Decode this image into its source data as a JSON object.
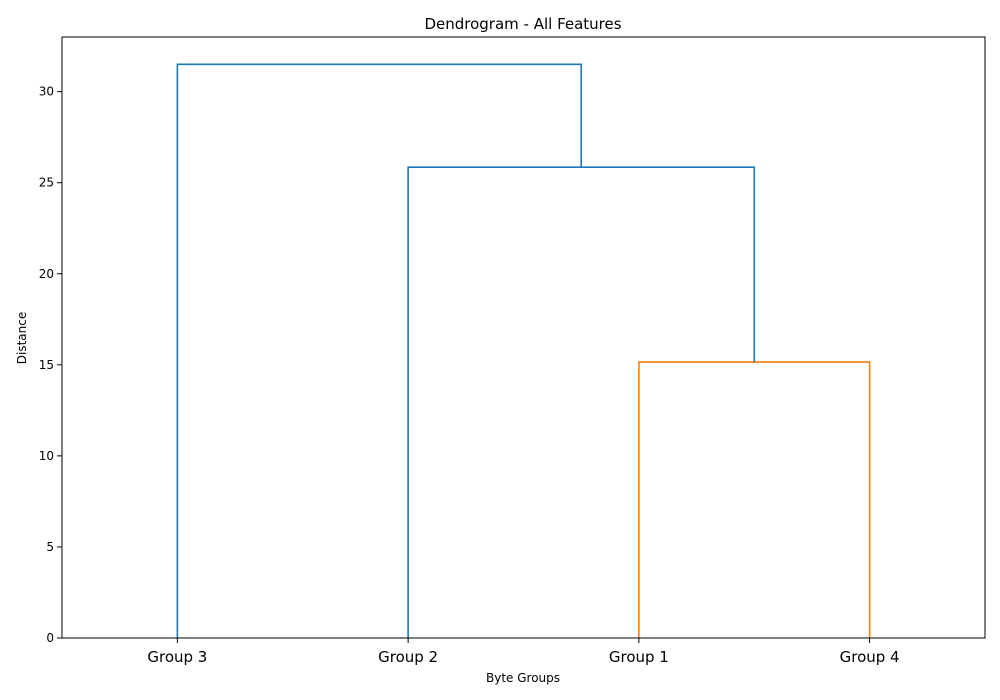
{
  "chart_data": {
    "type": "dendrogram",
    "title": "Dendrogram - All Features",
    "xlabel": "Byte Groups",
    "ylabel": "Distance",
    "ylim": [
      0,
      33
    ],
    "yticks": [
      0,
      5,
      10,
      15,
      20,
      25,
      30
    ],
    "leaves": [
      "Group 3",
      "Group 2",
      "Group 1",
      "Group 4"
    ],
    "links": [
      {
        "left": "Group 1",
        "right": "Group 4",
        "height": 15.15,
        "color": "#ff7f0e"
      },
      {
        "left": "Group 2",
        "right": "Group 1 + Group 4",
        "height": 25.85,
        "color": "#1f77b4"
      },
      {
        "left": "Group 3",
        "right": "Group 2 + Group 1 + Group 4",
        "height": 31.5,
        "color": "#1f77b4"
      }
    ],
    "grid": false
  }
}
